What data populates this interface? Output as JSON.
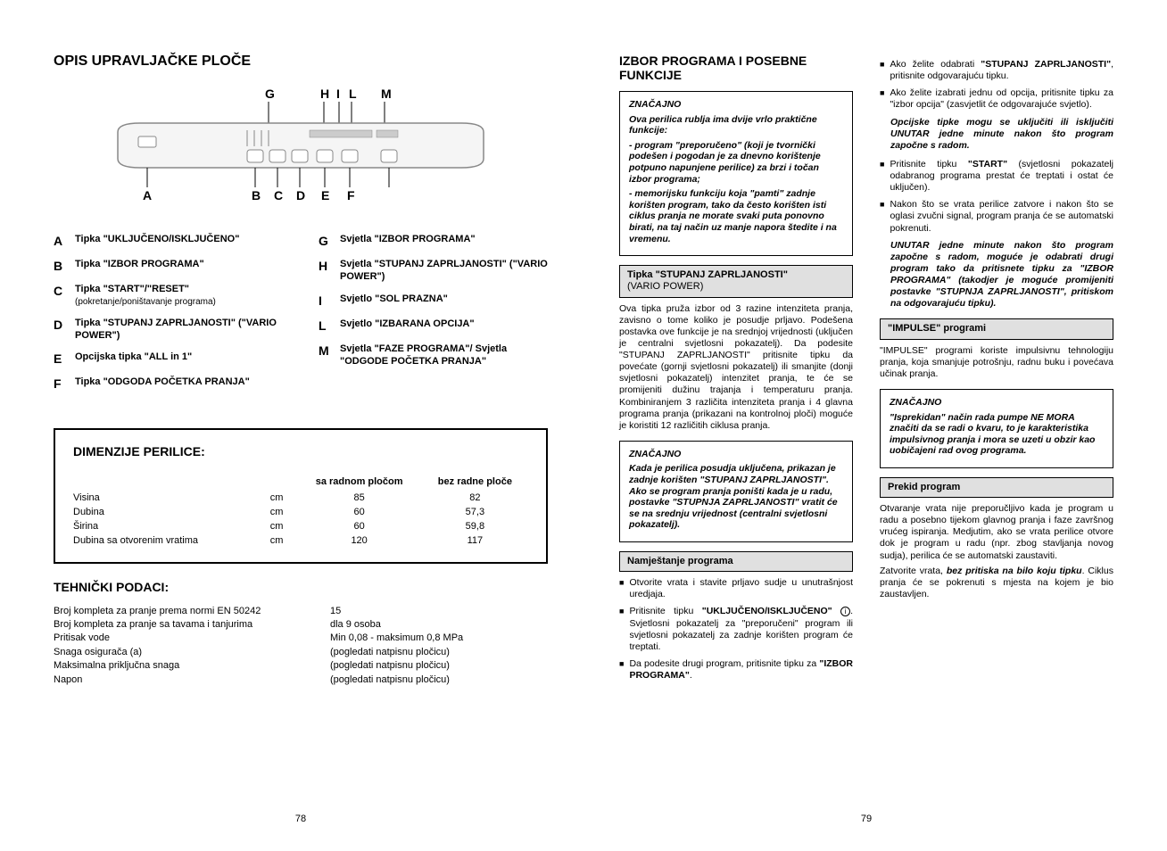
{
  "left": {
    "title": "OPIS UPRAVLJAČKE PLOČE",
    "diagram_labels": {
      "A": "A",
      "B": "B",
      "C": "C",
      "D": "D",
      "E": "E",
      "F": "F",
      "G": "G",
      "H": "H",
      "I": "I",
      "L": "L",
      "M": "M"
    },
    "legend_left": [
      {
        "l": "A",
        "t": "Tipka \"UKLJUČENO/ISKLJUČENO\"",
        "s": ""
      },
      {
        "l": "B",
        "t": "Tipka \"IZBOR PROGRAMA\"",
        "s": ""
      },
      {
        "l": "C",
        "t": "Tipka \"START\"/\"RESET\"",
        "s": "(pokretanje/poništavanje programa)"
      },
      {
        "l": "D",
        "t": "Tipka \"STUPANJ ZAPRLJANOSTI\" (\"VARIO POWER\")",
        "s": ""
      },
      {
        "l": "E",
        "t": "Opcijska tipka \"ALL in 1\"",
        "s": ""
      },
      {
        "l": "F",
        "t": "Tipka \"ODGODA POČETKA PRANJA\"",
        "s": ""
      }
    ],
    "legend_right": [
      {
        "l": "G",
        "t": "Svjetla \"IZBOR PROGRAMA\"",
        "s": ""
      },
      {
        "l": "H",
        "t": "Svjetla \"STUPANJ ZAPRLJANOSTI\" (\"VARIO POWER\")",
        "s": ""
      },
      {
        "l": "I",
        "t": "Svjetlo \"SOL PRAZNA\"",
        "s": ""
      },
      {
        "l": "L",
        "t": "Svjetlo \"IZBARANA OPCIJA\"",
        "s": ""
      },
      {
        "l": "M",
        "t": "Svjetla \"FAZE PROGRAMA\"/ Svjetla \"ODGODE POČETKA PRANJA\"",
        "s": ""
      }
    ],
    "dim": {
      "title": "DIMENZIJE PERILICE:",
      "col1": "sa radnom pločom",
      "col2": "bez radne ploče",
      "rows": [
        {
          "label": "Visina",
          "unit": "cm",
          "v1": "85",
          "v2": "82"
        },
        {
          "label": "Dubina",
          "unit": "cm",
          "v1": "60",
          "v2": "57,3"
        },
        {
          "label": "Širina",
          "unit": "cm",
          "v1": "60",
          "v2": "59,8"
        },
        {
          "label": "Dubina sa otvorenim vratima",
          "unit": "cm",
          "v1": "120",
          "v2": "117"
        }
      ]
    },
    "tech": {
      "title": "TEHNIČKI PODACI:",
      "rows": [
        {
          "l": "Broj kompleta za pranje prema normi EN 50242",
          "v": "15"
        },
        {
          "l": "Broj kompleta za pranje sa tavama i tanjurima",
          "v": "dla 9 osoba"
        },
        {
          "l": "Pritisak vode",
          "v": "Min 0,08 - maksimum 0,8 MPa"
        },
        {
          "l": "Snaga osigurača (a)",
          "v": "(pogledati natpisnu pločicu)"
        },
        {
          "l": "Maksimalna priključna snaga",
          "v": "(pogledati natpisnu pločicu)"
        },
        {
          "l": "Napon",
          "v": "(pogledati natpisnu pločicu)"
        }
      ]
    },
    "page_num": "78"
  },
  "right": {
    "title": "IZBOR PROGRAMA I POSEBNE FUNKCIJE",
    "box1": {
      "head": "ZNAČAJNO",
      "p0": "Ova perilica rublja ima dvije vrlo praktične funkcije:",
      "p1": "- program \"preporučeno\" (koji je tvornički podešen i pogodan je za dnevno korištenje potpuno napunjene perilice) za brzi i točan izbor programa;",
      "p2": "- memorijsku funkciju koja \"pamti\" zadnje korišten program, tako da često korišten isti ciklus pranja ne morate svaki puta ponovno birati, na taj način uz manje napora štedite i na vremenu."
    },
    "stupanj": {
      "head": "Tipka \"STUPANJ ZAPRLJANOSTI\"",
      "head2": "(VARIO POWER)",
      "body": "Ova tipka pruža izbor od 3 razine intenziteta pranja, zavisno o tome koliko je posudje prljavo. Podešena postavka ove funkcije je na srednjoj vrijednosti (uključen je centralni svjetlosni pokazatelj). Da podesite \"STUPANJ ZAPRLJANOSTI\" pritisnite tipku da povećate (gornji svjetlosni pokazatelj) ili smanjite (donji svjetlosni pokazatelj) intenzitet pranja, te će se promijeniti dužinu trajanja i temperaturu pranja. Kombiniranjem 3 različita intenziteta pranja i 4 glavna programa pranja (prikazani na kontrolnoj ploči) moguće je koristiti 12 različitih ciklusa pranja."
    },
    "box2": {
      "head": "ZNAČAJNO",
      "p": "Kada je perilica posudja uključena, prikazan je zadnje korišten \"STUPANJ ZAPRLJANOSTI\". Ako se program pranja poništi kada je u radu, postavke \"STUPNJA ZAPRLJANOSTI\" vratit će se na srednju vrijednost (centralni svjetlosni pokazatelj)."
    },
    "namj": {
      "head": "Namještanje programa",
      "b1": "Otvorite vrata i stavite prljavo sudje u unutrašnjost uredjaja.",
      "b2a": "Pritisnite tipku ",
      "b2b": "\"UKLJUČENO/ISKLJUČENO\"",
      "b2c": ". Svjetlosni pokazatelj za \"preporučeni\" program ili svjetlosni pokazatelj za zadnje korišten program će treptati.",
      "b3a": "Da podesite drugi program, pritisnite tipku za ",
      "b3b": "\"IZBOR PROGRAMA\"",
      "b3c": "."
    },
    "col2": {
      "b1a": "Ako želite odabrati ",
      "b1b": "\"STUPANJ ZAPRLJANOSTI\"",
      "b1c": ", pritisnite odgovarajuću tipku.",
      "b2": "Ako želite izabrati jednu od opcija, pritisnite tipku za \"izbor opcija\" (zasvjetlit će odgovarajuće svjetlo).",
      "emph1": "Opcijske tipke mogu se uključiti ili isključiti UNUTAR jedne minute nakon što program započne s radom.",
      "b3a": "Pritisnite tipku ",
      "b3b": "\"START\"",
      "b3c": " (svjetlosni pokazatelj odabranog programa prestat će treptati i ostat će uključen).",
      "b4": "Nakon što se vrata perilice zatvore i nakon što se oglasi zvučni signal, program pranja će se automatski pokrenuti.",
      "emph2": "UNUTAR jedne minute nakon što program započne s radom, moguće je odabrati drugi program tako da pritisnete tipku za \"IZBOR PROGRAMA\" (takodjer je moguće promijeniti postavke \"STUPNJA ZAPRLJANOSTI\", pritiskom na odgovarajuću tipku).",
      "impulse_head": "\"IMPULSE\" programi",
      "impulse_body": "\"IMPULSE\" programi koriste impulsivnu tehnologiju pranja, koja smanjuje potrošnju, radnu buku i povećava učinak pranja.",
      "box3_head": "ZNAČAJNO",
      "box3_p": "\"Isprekidan\" način rada pumpe NE MORA značiti da se radi o kvaru, to je karakteristika impulsivnog pranja i mora se uzeti u obzir kao uobičajeni rad ovog programa.",
      "prekid_head": "Prekid program",
      "prekid_body1": "Otvaranje vrata nije preporučljivo kada je program u radu a posebno tijekom glavnog pranja i faze završnog vrućeg ispiranja. Medjutim, ako se vrata perilice otvore dok je program u radu (npr. zbog stavljanja novog sudja), perilica će se automatski zaustaviti.",
      "prekid_body2a": "Zatvorite vrata, ",
      "prekid_body2b": "bez pritiska na bilo koju tipku",
      "prekid_body2c": ". Ciklus pranja će se pokrenuti s mjesta na kojem je bio zaustavljen."
    },
    "page_num": "79"
  }
}
